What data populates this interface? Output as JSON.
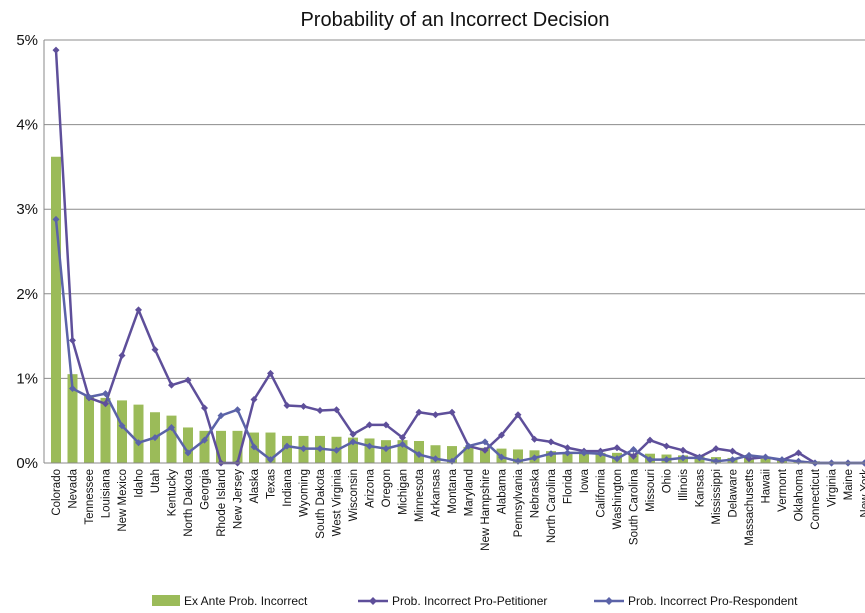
{
  "chart_data": {
    "type": "bar",
    "title": "Probability of an Incorrect Decision",
    "xlabel": "",
    "ylabel": "",
    "ylim": [
      0,
      5
    ],
    "y_unit": "%",
    "yticks": [
      "0%",
      "1%",
      "2%",
      "3%",
      "4%",
      "5%"
    ],
    "grid": true,
    "legend_position": "bottom",
    "categories": [
      "Colorado",
      "Nevada",
      "Tennessee",
      "Louisiana",
      "New Mexico",
      "Idaho",
      "Utah",
      "Kentucky",
      "North Dakota",
      "Georgia",
      "Rhode Island",
      "New Jersey",
      "Alaska",
      "Texas",
      "Indiana",
      "Wyoming",
      "South Dakota",
      "West Virginia",
      "Wisconsin",
      "Arizona",
      "Oregon",
      "Michigan",
      "Minnesota",
      "Arkansas",
      "Montana",
      "Maryland",
      "New Hampshire",
      "Alabama",
      "Pennsylvania",
      "Nebraska",
      "North Carolina",
      "Florida",
      "Iowa",
      "California",
      "Washington",
      "South Carolina",
      "Missouri",
      "Ohio",
      "Illinois",
      "Kansas",
      "Mississippi",
      "Delaware",
      "Massachusetts",
      "Hawaii",
      "Vermont",
      "Oklahoma",
      "Connecticut",
      "Virginia",
      "Maine",
      "New York"
    ],
    "series": [
      {
        "name": "Ex Ante Prob. Incorrect",
        "kind": "bar",
        "color": "#9bbb59",
        "values": [
          3.62,
          1.05,
          0.8,
          0.77,
          0.74,
          0.69,
          0.6,
          0.56,
          0.42,
          0.38,
          0.38,
          0.38,
          0.36,
          0.36,
          0.32,
          0.32,
          0.32,
          0.31,
          0.3,
          0.29,
          0.27,
          0.27,
          0.26,
          0.21,
          0.2,
          0.19,
          0.18,
          0.17,
          0.16,
          0.15,
          0.14,
          0.13,
          0.13,
          0.12,
          0.12,
          0.11,
          0.11,
          0.1,
          0.09,
          0.08,
          0.07,
          0.06,
          0.06,
          0.05,
          0.04,
          0.03,
          0.02,
          0.01,
          0.01,
          0.01
        ]
      },
      {
        "name": "Prob. Incorrect Pro-Petitioner",
        "kind": "line",
        "color": "#5e4f9a",
        "values": [
          4.88,
          1.45,
          0.77,
          0.7,
          1.27,
          1.81,
          1.34,
          0.92,
          0.98,
          0.65,
          0.0,
          0.0,
          0.75,
          1.06,
          0.68,
          0.67,
          0.62,
          0.63,
          0.34,
          0.45,
          0.45,
          0.3,
          0.6,
          0.57,
          0.6,
          0.2,
          0.15,
          0.33,
          0.57,
          0.28,
          0.25,
          0.18,
          0.14,
          0.14,
          0.18,
          0.08,
          0.27,
          0.2,
          0.15,
          0.07,
          0.17,
          0.14,
          0.05,
          0.07,
          0.03,
          0.12,
          0.0,
          0.0,
          0.0,
          0.0
        ]
      },
      {
        "name": "Prob. Incorrect Pro-Respondent",
        "kind": "line",
        "color": "#5b63a8",
        "values": [
          2.88,
          0.88,
          0.78,
          0.82,
          0.44,
          0.24,
          0.3,
          0.42,
          0.12,
          0.27,
          0.56,
          0.63,
          0.19,
          0.04,
          0.2,
          0.17,
          0.17,
          0.15,
          0.25,
          0.2,
          0.17,
          0.22,
          0.1,
          0.05,
          0.02,
          0.2,
          0.25,
          0.07,
          0.02,
          0.06,
          0.11,
          0.12,
          0.12,
          0.11,
          0.05,
          0.16,
          0.04,
          0.04,
          0.06,
          0.06,
          0.02,
          0.04,
          0.09,
          0.07,
          0.04,
          0.02,
          0.0,
          0.0,
          0.0,
          0.0
        ]
      }
    ]
  }
}
